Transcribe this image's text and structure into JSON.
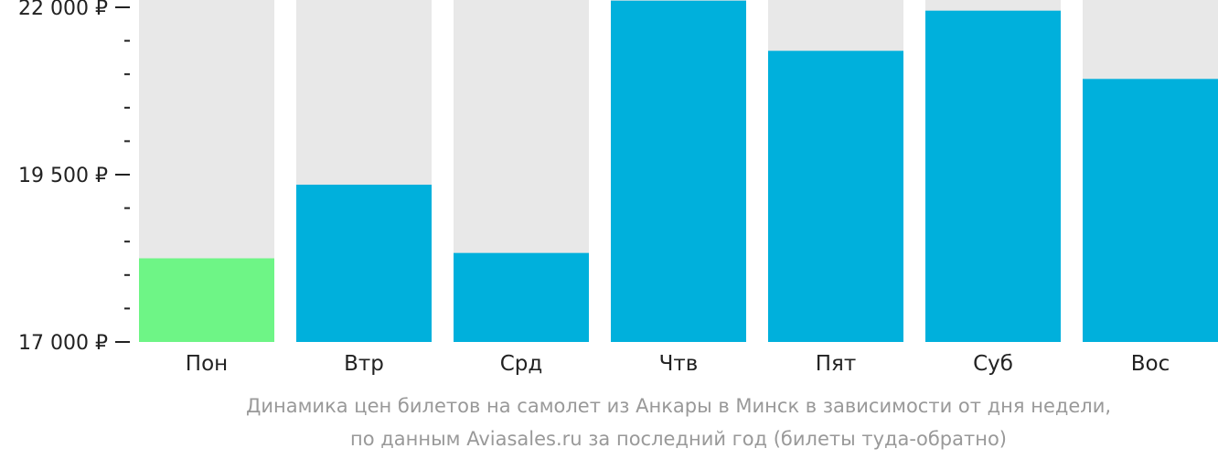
{
  "chart_data": {
    "type": "bar",
    "categories": [
      "Пон",
      "Втр",
      "Срд",
      "Чтв",
      "Пят",
      "Суб",
      "Вос"
    ],
    "values": [
      18250,
      19350,
      18330,
      22100,
      21350,
      21950,
      20930
    ],
    "ylim": [
      17000,
      22000
    ],
    "yticks": [
      {
        "value": 22000,
        "label": "22 000 ₽"
      },
      {
        "value": 19500,
        "label": "19 500 ₽"
      },
      {
        "value": 17000,
        "label": "17 000 ₽"
      }
    ],
    "minor_tick_step": 500,
    "highlight_index": 0,
    "colors": {
      "bar": "#00b0dc",
      "highlight": "#6ef586",
      "bar_background": "#e8e8e8"
    },
    "caption": [
      "Динамика цен билетов на самолет из Анкары в Минск в зависимости от дня недели,",
      "по данным Aviasales.ru за последний год (билеты туда-обратно)"
    ]
  }
}
